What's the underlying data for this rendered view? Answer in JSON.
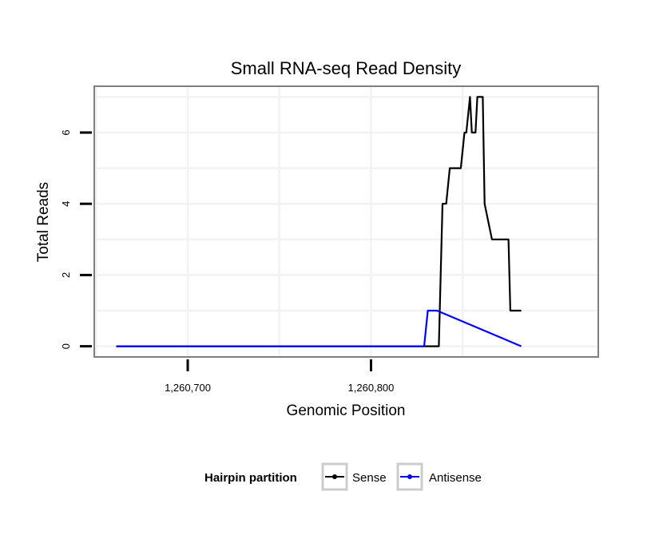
{
  "chart_data": {
    "type": "line",
    "title": "Small RNA-seq Read Density",
    "xlabel": "Genomic Position",
    "ylabel": "Total Reads",
    "xlim": [
      1260649,
      1260924
    ],
    "ylim": [
      -0.3,
      7.3
    ],
    "x_ticks": [
      {
        "value": 1260700,
        "label": "1,260,700"
      },
      {
        "value": 1260800,
        "label": "1,260,800"
      }
    ],
    "y_ticks": [
      {
        "value": 0,
        "label": "0"
      },
      {
        "value": 2,
        "label": "2"
      },
      {
        "value": 4,
        "label": "4"
      },
      {
        "value": 6,
        "label": "6"
      }
    ],
    "grid": true,
    "legend": {
      "title": "Hairpin partition",
      "position": "bottom",
      "entries": [
        "Sense",
        "Antisense"
      ]
    },
    "series": [
      {
        "name": "Sense",
        "color": "#000000",
        "x": [
          1260661,
          1260837,
          1260839,
          1260841,
          1260843,
          1260849,
          1260851,
          1260852,
          1260854,
          1260855,
          1260857,
          1260858,
          1260861,
          1260862,
          1260866,
          1260867,
          1260868,
          1260875,
          1260876,
          1260882
        ],
        "y": [
          0,
          0,
          4,
          4,
          5,
          5,
          6,
          6,
          7,
          6,
          6,
          7,
          7,
          4,
          3,
          3,
          3,
          3,
          1,
          1
        ]
      },
      {
        "name": "Antisense",
        "color": "#0000ff",
        "x": [
          1260661,
          1260829,
          1260831,
          1260836,
          1260882
        ],
        "y": [
          0,
          0,
          1,
          1,
          0
        ]
      }
    ]
  }
}
